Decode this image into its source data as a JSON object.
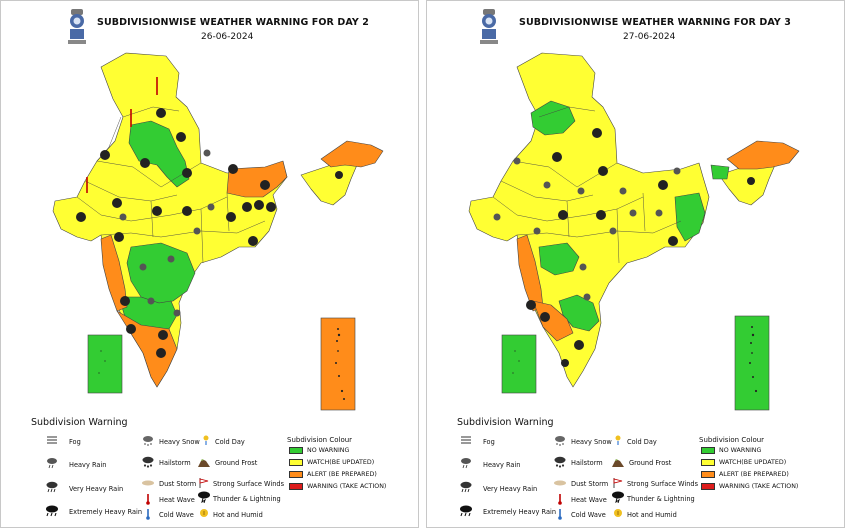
{
  "panels": [
    {
      "title": "SUBDIVISIONWISE WEATHER WARNING FOR DAY 2",
      "date": "26-06-2024",
      "islands": {
        "andaman_color": "orange",
        "lakshadweep_color": "green"
      }
    },
    {
      "title": "SUBDIVISIONWISE WEATHER WARNING FOR DAY 3",
      "date": "27-06-2024",
      "islands": {
        "andaman_color": "green",
        "lakshadweep_color": "green"
      }
    }
  ],
  "legend": {
    "title": "Subdivision Warning",
    "items": {
      "fog": "Fog",
      "heavy_rain": "Heavy Rain",
      "very_heavy_rain": "Very Heavy Rain",
      "extremely_heavy_rain": "Extremely Heavy Rain",
      "heavy_snow": "Heavy Snow",
      "cold_day": "Cold Day",
      "hailstorm": "Hailstorm",
      "ground_frost": "Ground Frost",
      "dust_storm": "Dust Storm",
      "strong_surface_winds": "Strong Surface Winds",
      "heat_wave": "Heat Wave",
      "thunder_lightning": "Thunder & Lightning",
      "cold_wave": "Cold Wave",
      "hot_humid": "Hot and Humid"
    },
    "colour_title": "Subdivision Colour",
    "colours": {
      "no_warning": "NO WARNING",
      "watch": "WATCH(BE UPDATED)",
      "alert": "ALERT (BE PREPARED)",
      "warning": "WARNING (TAKE ACTION)"
    }
  },
  "colors": {
    "green": "#33cc33",
    "yellow": "#ffff33",
    "orange": "#ff8c1a",
    "red": "#dd1c1c"
  }
}
